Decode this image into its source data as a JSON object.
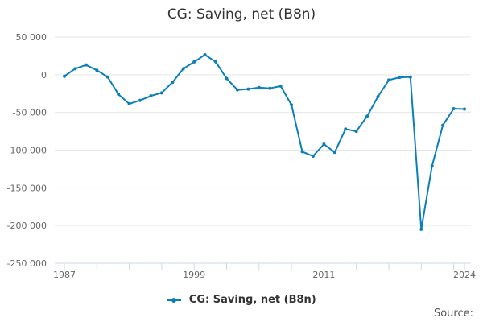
{
  "chart_data": {
    "type": "line",
    "title": "CG: Saving, net (B8n)",
    "source_label": "Source:",
    "xlabel": "",
    "ylabel": "",
    "ylim": [
      -250000,
      50000
    ],
    "yticks": [
      50000,
      0,
      -50000,
      -100000,
      -150000,
      -200000,
      -250000
    ],
    "ytick_labels": [
      "50 000",
      "0",
      "-50 000",
      "-100 000",
      "-150 000",
      "-200 000",
      "-250 000"
    ],
    "xlim": [
      1987,
      2024
    ],
    "xtick_labels": [
      "1987",
      "1999",
      "2011",
      "2024"
    ],
    "xtick_values": [
      1987,
      1999,
      2011,
      2024
    ],
    "grid": true,
    "legend_position": "bottom",
    "color": "#0b7fba",
    "series": [
      {
        "name": "CG: Saving, net (B8n)",
        "x": [
          1987,
          1988,
          1989,
          1990,
          1991,
          1992,
          1993,
          1994,
          1995,
          1996,
          1997,
          1998,
          1999,
          2000,
          2001,
          2002,
          2003,
          2004,
          2005,
          2006,
          2007,
          2008,
          2009,
          2010,
          2011,
          2012,
          2013,
          2014,
          2015,
          2016,
          2017,
          2018,
          2019,
          2020,
          2021,
          2022,
          2023,
          2024
        ],
        "values": [
          -2000,
          8000,
          13000,
          6000,
          -3000,
          -26000,
          -38500,
          -34000,
          -28000,
          -24000,
          -10000,
          8000,
          17000,
          26500,
          17000,
          -5000,
          -20000,
          -19000,
          -17000,
          -18000,
          -15000,
          -40000,
          -102000,
          -108000,
          -92000,
          -103000,
          -72000,
          -75000,
          -55000,
          -29000,
          -7000,
          -3500,
          -3000,
          -205000,
          -121000,
          -67000,
          -45000,
          -45500
        ]
      }
    ]
  }
}
